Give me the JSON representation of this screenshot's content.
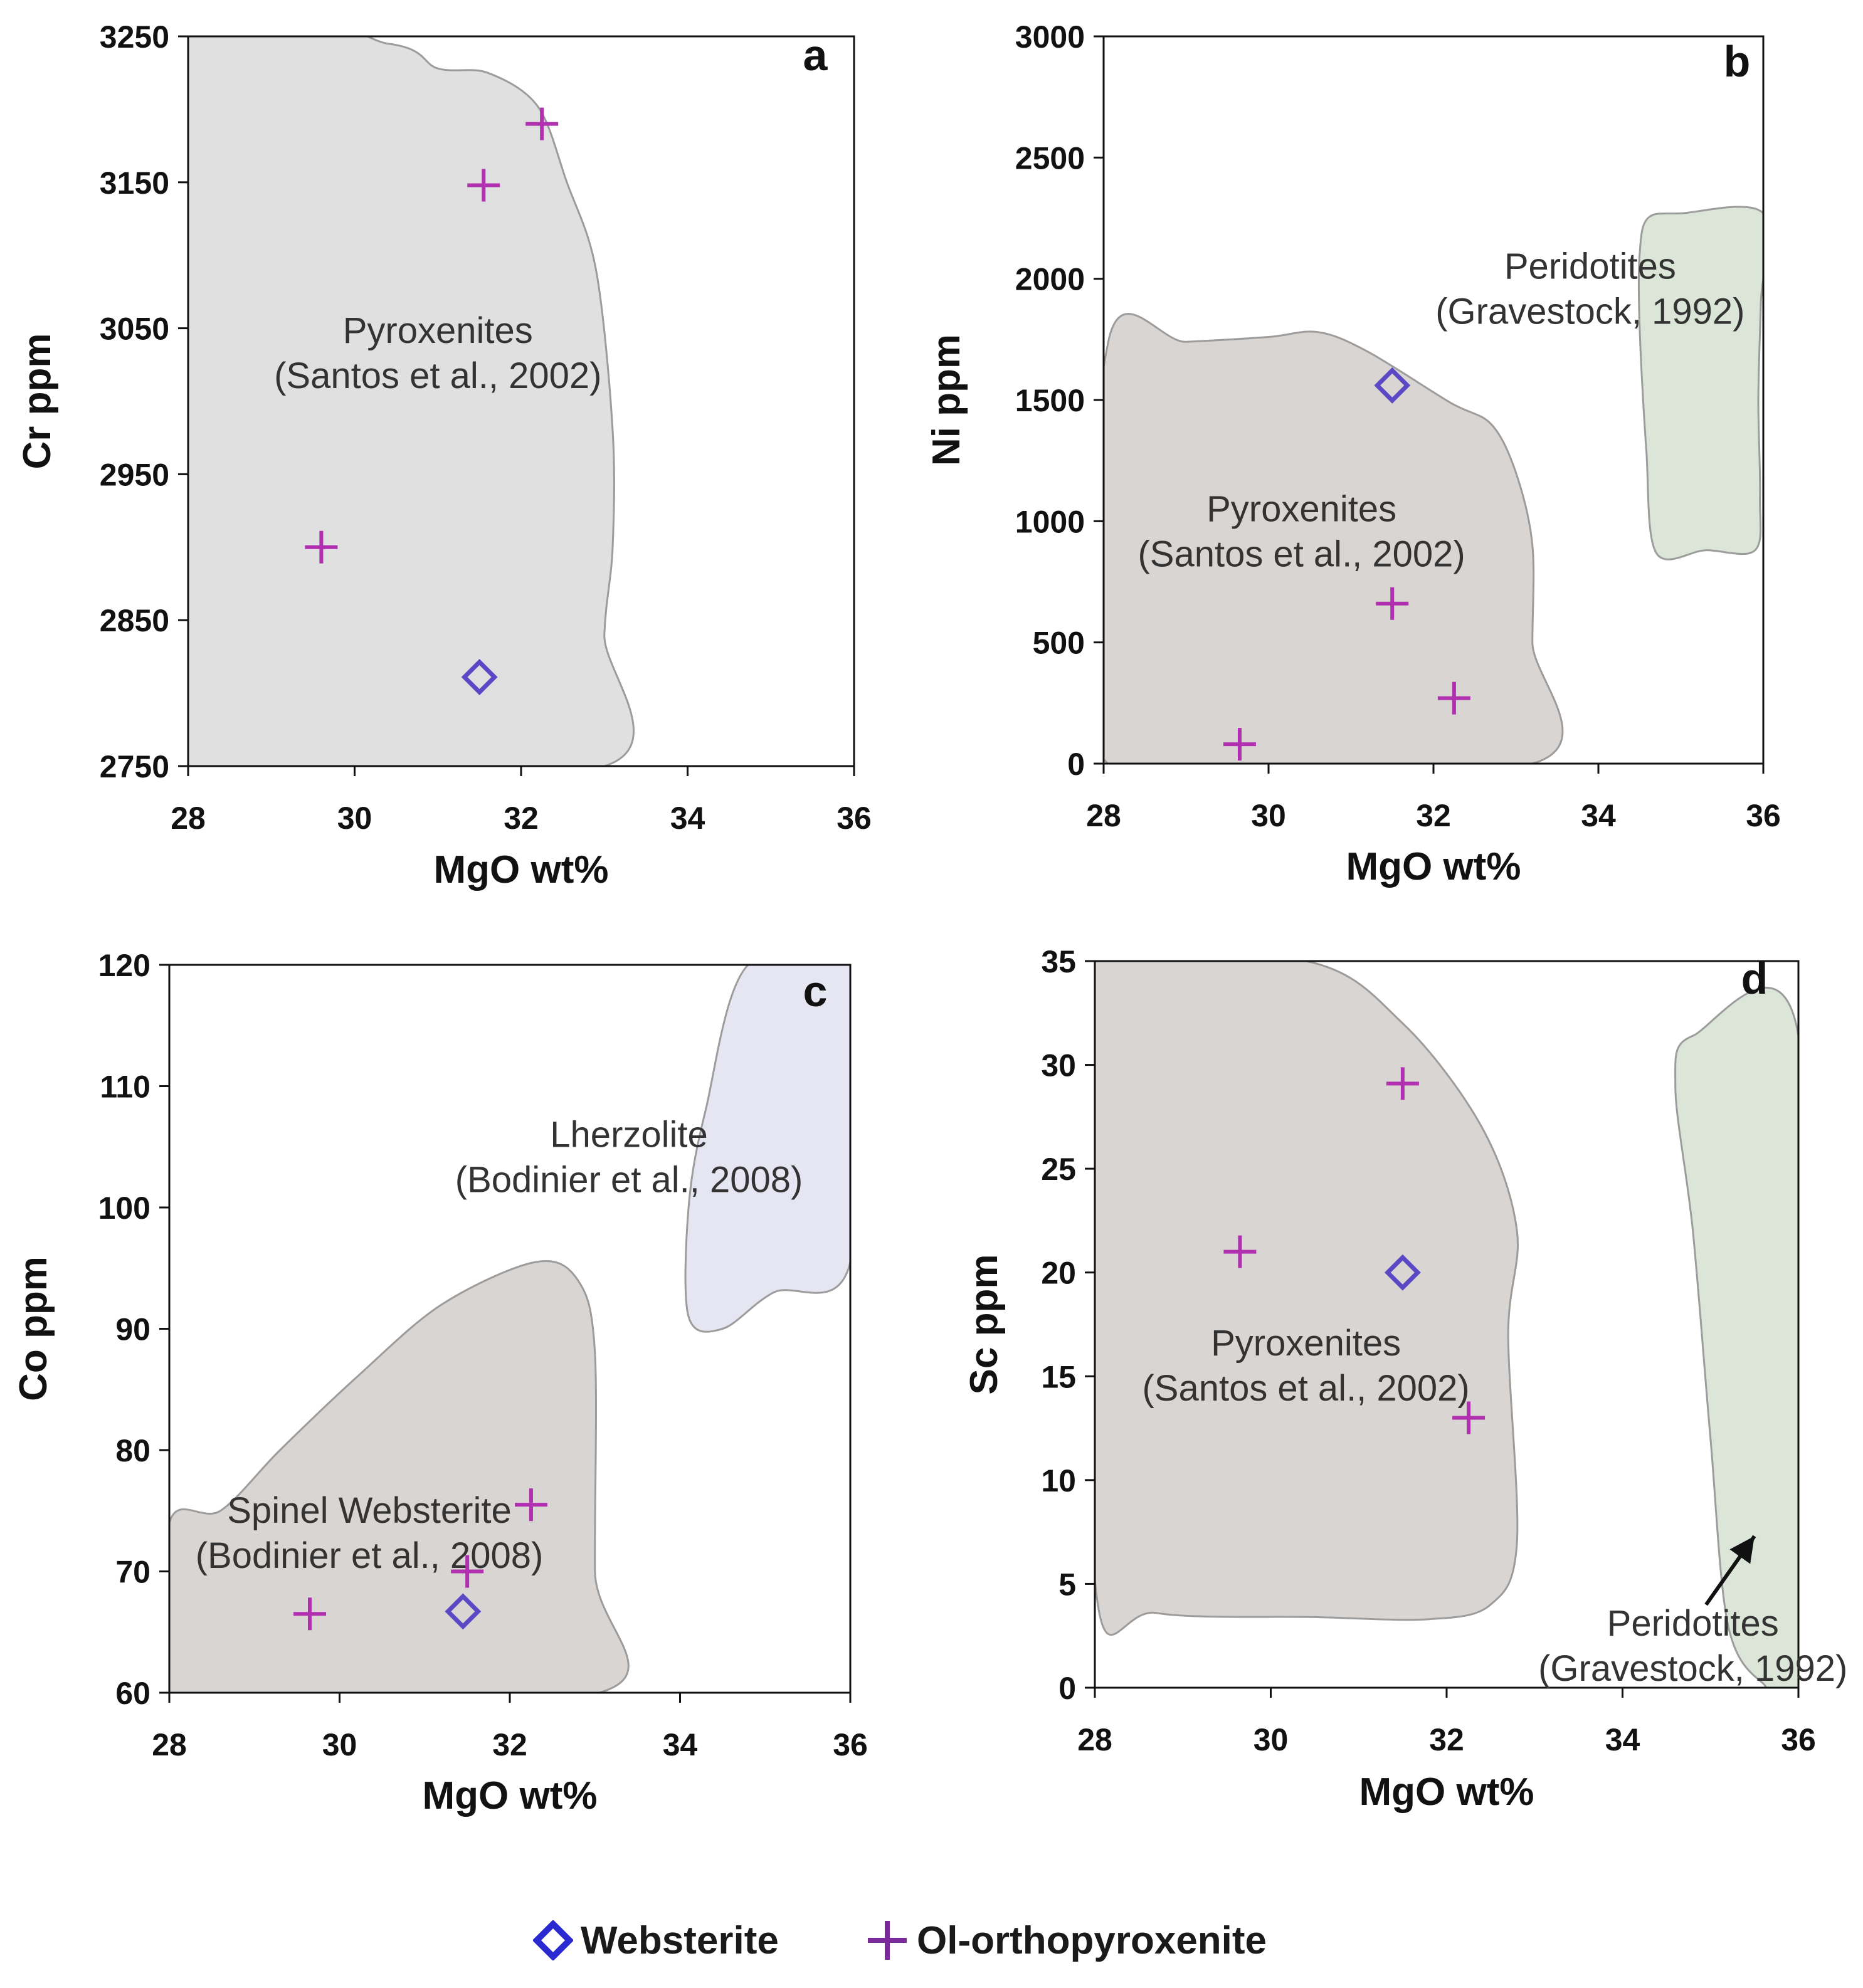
{
  "colors": {
    "websterite": "#2a2ad0",
    "websterite_plot": "#5b48c4",
    "ol_orthopyroxenite": "#b030b0",
    "legend_plus": "#7a2a9a",
    "pyroxenite_field": "#e0e0e0",
    "pyroxenite_field_dark": "#d8d5d3",
    "peridotite_field": "#dbe6d8",
    "lherzolite_field": "#e6e6f3",
    "field_outline": "#9c9c9c"
  },
  "legend": {
    "websterite_label": "Websterite",
    "ol_orthopyroxenite_label": "Ol-orthopyroxenite"
  },
  "chart_data": [
    {
      "panel": "a",
      "type": "scatter",
      "xlabel": "MgO wt%",
      "ylabel": "Cr ppm",
      "xlim": [
        28,
        36
      ],
      "ylim": [
        2750,
        3250
      ],
      "xticks": [
        28,
        30,
        32,
        34,
        36
      ],
      "yticks": [
        2750,
        2850,
        2950,
        3050,
        3150,
        3250
      ],
      "series": [
        {
          "name": "Websterite",
          "marker": "diamond",
          "points": [
            [
              31.5,
              2811
            ]
          ]
        },
        {
          "name": "Ol-orthopyroxenite",
          "marker": "plus",
          "points": [
            [
              29.6,
              2900
            ],
            [
              31.55,
              3148
            ],
            [
              32.25,
              3190
            ]
          ]
        }
      ],
      "fields": [
        {
          "name": "pyroxenites",
          "label": [
            "Pyroxenites",
            "(Santos et al., 2002)"
          ],
          "label_at": [
            31.0,
            3040
          ],
          "color": "pyroxenite_field",
          "outline": [
            [
              28,
              3250
            ],
            [
              30.4,
              3245
            ],
            [
              31.0,
              3228
            ],
            [
              31.6,
              3225
            ],
            [
              32.2,
              3202
            ],
            [
              32.55,
              3150
            ],
            [
              32.9,
              3090
            ],
            [
              33.1,
              2980
            ],
            [
              33.1,
              2900
            ],
            [
              33.0,
              2840
            ],
            [
              33.0,
              2750
            ],
            [
              28,
              2750
            ]
          ]
        }
      ]
    },
    {
      "panel": "b",
      "type": "scatter",
      "xlabel": "MgO wt%",
      "ylabel": "Ni ppm",
      "xlim": [
        28,
        36
      ],
      "ylim": [
        0,
        3000
      ],
      "xticks": [
        28,
        30,
        32,
        34,
        36
      ],
      "yticks": [
        0,
        500,
        1000,
        1500,
        2000,
        2500,
        3000
      ],
      "series": [
        {
          "name": "Websterite",
          "marker": "diamond",
          "points": [
            [
              31.5,
              1560
            ]
          ]
        },
        {
          "name": "Ol-orthopyroxenite",
          "marker": "plus",
          "points": [
            [
              29.65,
              80
            ],
            [
              31.5,
              660
            ],
            [
              32.25,
              270
            ]
          ]
        }
      ],
      "fields": [
        {
          "name": "pyroxenites",
          "label": [
            "Pyroxenites",
            "(Santos et al., 2002)"
          ],
          "label_at": [
            30.4,
            1000
          ],
          "color": "pyroxenite_field_dark",
          "outline": [
            [
              28.05,
              1730
            ],
            [
              29.0,
              1740
            ],
            [
              30.0,
              1760
            ],
            [
              30.6,
              1780
            ],
            [
              31.2,
              1700
            ],
            [
              32.2,
              1490
            ],
            [
              32.7,
              1400
            ],
            [
              33.0,
              1200
            ],
            [
              33.2,
              900
            ],
            [
              33.2,
              500
            ],
            [
              33.2,
              0
            ],
            [
              28.05,
              0
            ]
          ]
        },
        {
          "name": "peridotites",
          "label": [
            "Peridotites",
            "(Gravestock, 1992)"
          ],
          "label_at": [
            33.9,
            2000
          ],
          "color": "peridotite_field",
          "outline": [
            [
              34.6,
              2250
            ],
            [
              35.0,
              2270
            ],
            [
              36.0,
              2270
            ],
            [
              35.97,
              1900
            ],
            [
              35.94,
              1500
            ],
            [
              35.96,
              1100
            ],
            [
              35.9,
              880
            ],
            [
              35.3,
              880
            ],
            [
              34.7,
              870
            ],
            [
              34.58,
              1300
            ],
            [
              34.5,
              1800
            ],
            [
              34.5,
              2100
            ]
          ]
        }
      ]
    },
    {
      "panel": "c",
      "type": "scatter",
      "xlabel": "MgO wt%",
      "ylabel": "Co ppm",
      "xlim": [
        28,
        36
      ],
      "ylim": [
        60,
        120
      ],
      "xticks": [
        28,
        30,
        32,
        34,
        36
      ],
      "yticks": [
        60,
        70,
        80,
        90,
        100,
        110,
        120
      ],
      "series": [
        {
          "name": "Websterite",
          "marker": "diamond",
          "points": [
            [
              31.45,
              66.7
            ]
          ]
        },
        {
          "name": "Ol-orthopyroxenite",
          "marker": "plus",
          "points": [
            [
              29.65,
              66.5
            ],
            [
              31.5,
              70
            ],
            [
              32.25,
              75.5
            ]
          ]
        }
      ],
      "fields": [
        {
          "name": "spinel-websterite",
          "label": [
            "Spinel Websterite",
            "(Bodinier et al., 2008)"
          ],
          "label_at": [
            30.35,
            74
          ],
          "color": "pyroxenite_field_dark",
          "outline": [
            [
              28,
              74
            ],
            [
              28.6,
              75
            ],
            [
              29.3,
              80
            ],
            [
              30.2,
              86
            ],
            [
              31.2,
              92
            ],
            [
              32.3,
              95.5
            ],
            [
              32.8,
              94
            ],
            [
              33.0,
              88
            ],
            [
              33.0,
              70
            ],
            [
              33.05,
              60
            ],
            [
              28,
              60
            ]
          ]
        },
        {
          "name": "lherzolite",
          "label": [
            "Lherzolite",
            "(Bodinier et al., 2008)"
          ],
          "label_at": [
            33.4,
            105
          ],
          "color": "lherzolite_field",
          "outline": [
            [
              34.8,
              120
            ],
            [
              36,
              120
            ],
            [
              36,
              95.5
            ],
            [
              35.1,
              93
            ],
            [
              34.5,
              90
            ],
            [
              34.1,
              91
            ],
            [
              34.1,
              100
            ],
            [
              34.3,
              108
            ]
          ]
        }
      ]
    },
    {
      "panel": "d",
      "type": "scatter",
      "xlabel": "MgO wt%",
      "ylabel": "Sc ppm",
      "xlim": [
        28,
        36
      ],
      "ylim": [
        0,
        35
      ],
      "xticks": [
        28,
        30,
        32,
        34,
        36
      ],
      "yticks": [
        0,
        5,
        10,
        15,
        20,
        25,
        30,
        35
      ],
      "series": [
        {
          "name": "Websterite",
          "marker": "diamond",
          "points": [
            [
              31.5,
              20
            ]
          ]
        },
        {
          "name": "Ol-orthopyroxenite",
          "marker": "plus",
          "points": [
            [
              29.65,
              21
            ],
            [
              31.5,
              29.1
            ],
            [
              32.25,
              13
            ]
          ]
        }
      ],
      "fields": [
        {
          "name": "pyroxenites",
          "label": [
            "Pyroxenites",
            "(Santos et al., 2002)"
          ],
          "label_at": [
            30.4,
            16
          ],
          "color": "pyroxenite_field_dark",
          "outline": [
            [
              28,
              35
            ],
            [
              30.4,
              35
            ],
            [
              31.5,
              32
            ],
            [
              32.4,
              27
            ],
            [
              32.8,
              22
            ],
            [
              32.7,
              17
            ],
            [
              32.8,
              7
            ],
            [
              32.5,
              4
            ],
            [
              31.8,
              3.3
            ],
            [
              30.5,
              3.4
            ],
            [
              28.7,
              3.6
            ],
            [
              28,
              5.2
            ]
          ]
        },
        {
          "name": "peridotites",
          "label": [
            "Peridotites",
            "(Gravestock, 1992)"
          ],
          "label_at": [
            34.8,
            2.5
          ],
          "color": "peridotite_field",
          "outline": [
            [
              34.8,
              31.4
            ],
            [
              36,
              31.4
            ],
            [
              36,
              0
            ],
            [
              35.6,
              0.2
            ],
            [
              35.2,
              3
            ],
            [
              35.0,
              12
            ],
            [
              34.8,
              22
            ],
            [
              34.6,
              29
            ]
          ]
        }
      ],
      "annotation": {
        "type": "arrow",
        "from": [
          34.95,
          4.0
        ],
        "to": [
          35.5,
          7.3
        ]
      }
    }
  ]
}
